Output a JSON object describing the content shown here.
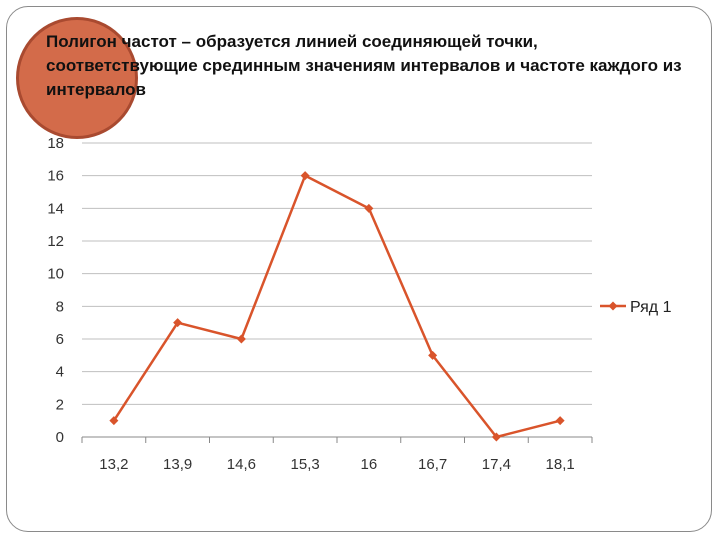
{
  "slide": {
    "text": "Полигон частот – образуется линией соединяющей точки, соответствующие срединным значениям интервалов и частоте каждого из интервалов"
  },
  "chart_data": {
    "type": "line",
    "categories": [
      "13,2",
      "13,9",
      "14,6",
      "15,3",
      "16",
      "16,7",
      "17,4",
      "18,1"
    ],
    "series": [
      {
        "name": "Ряд 1",
        "values": [
          1,
          7,
          6,
          16,
          14,
          5,
          0,
          1
        ]
      }
    ],
    "title": "",
    "xlabel": "",
    "ylabel": "",
    "ylim": [
      0,
      18
    ],
    "yticks": [
      "0",
      "2",
      "4",
      "6",
      "8",
      "10",
      "12",
      "14",
      "16",
      "18"
    ],
    "grid": true,
    "legend": "right",
    "colors": {
      "series": "#d9542b",
      "grid": "#bfbfbf",
      "axis": "#888888",
      "circle": "#d36b4a"
    }
  }
}
